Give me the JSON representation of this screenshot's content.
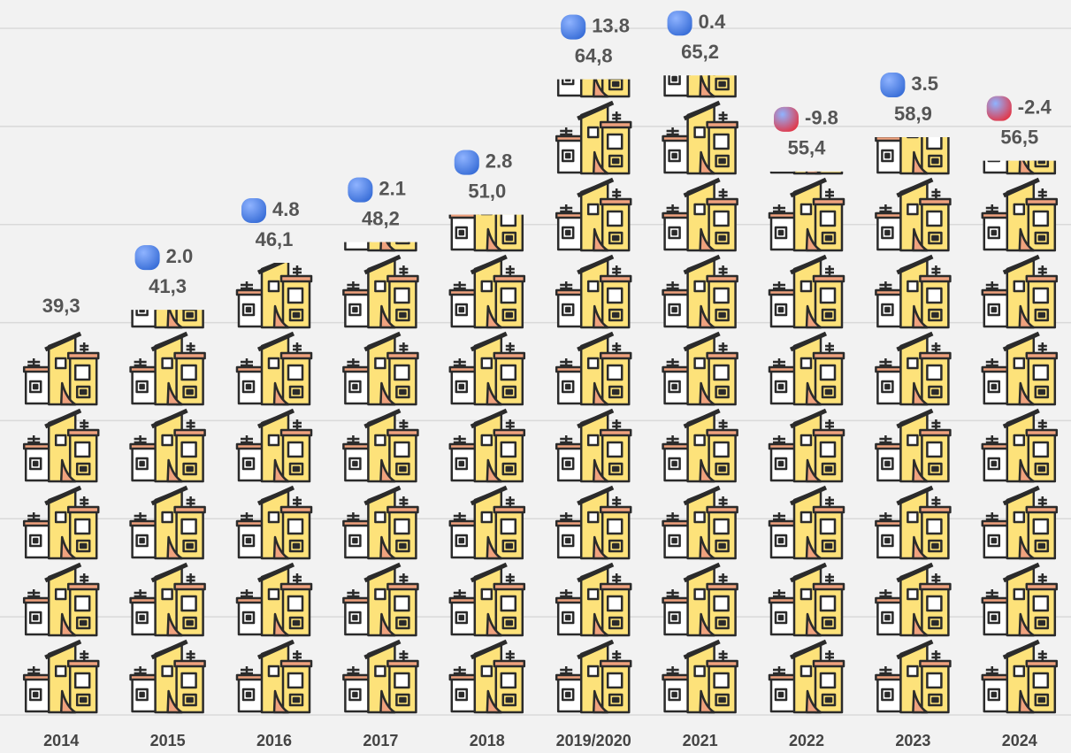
{
  "chart_data": {
    "type": "pictograph",
    "categories": [
      "2014",
      "2015",
      "2016",
      "2017",
      "2018",
      "2019/2020",
      "2021",
      "2022",
      "2023",
      "2024"
    ],
    "values": [
      39.3,
      41.3,
      46.1,
      48.2,
      51.0,
      64.8,
      65.2,
      55.4,
      58.9,
      56.5
    ],
    "value_labels": [
      "39,3",
      "41,3",
      "46,1",
      "48,2",
      "51,0",
      "64,8",
      "65,2",
      "55,4",
      "58,9",
      "56,5"
    ],
    "change_values": [
      null,
      2.0,
      4.8,
      2.1,
      2.8,
      13.8,
      0.4,
      -9.8,
      3.5,
      -2.4
    ],
    "change_labels": [
      null,
      "2.0",
      "4.8",
      "2.1",
      "2.8",
      "13.8",
      "0.4",
      "-9.8",
      "3.5",
      "-2.4"
    ],
    "positive_color": "#3a6fd8",
    "negative_color": "#e03a4c",
    "ylim": [
      0,
      70
    ],
    "grid_lines": [
      0,
      10,
      20,
      30,
      40,
      50,
      60,
      70
    ],
    "grid": true
  }
}
